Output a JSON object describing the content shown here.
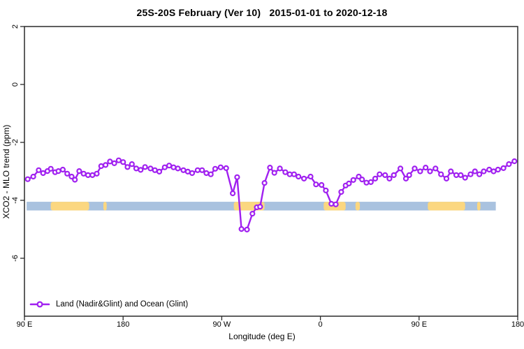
{
  "chart_data": {
    "type": "line",
    "title": "25S-20S February (Ver 10)   2015-01-01 to 2020-12-18",
    "xlabel": "Longitude (deg E)",
    "ylabel": "XCO2 - MLO trend (ppm)",
    "x_axis": {
      "wrapped_longitude": true,
      "range_deg_from_start": [
        0,
        450
      ],
      "tick_positions_deg": [
        0,
        90,
        180,
        270,
        360,
        450
      ],
      "tick_labels": [
        "90 E",
        "180",
        "90 W",
        "0",
        "90 E",
        "180"
      ]
    },
    "y_axis": {
      "range": [
        -8,
        2
      ],
      "tick_values": [
        2,
        0,
        -2,
        -4,
        -6
      ],
      "tick_labels": [
        "2",
        "0",
        "-2",
        "-4",
        "-6"
      ],
      "grid": false
    },
    "series": [
      {
        "name": "Land (Nadir&Glint) and Ocean (Glint)",
        "color": "#A020F0",
        "marker": "open-circle",
        "points": [
          [
            3,
            -3.27
          ],
          [
            8,
            -3.18
          ],
          [
            13,
            -2.96
          ],
          [
            17,
            -3.06
          ],
          [
            21,
            -2.99
          ],
          [
            24,
            -2.91
          ],
          [
            28,
            -3.03
          ],
          [
            31,
            -2.99
          ],
          [
            35,
            -2.94
          ],
          [
            39,
            -3.08
          ],
          [
            43,
            -3.18
          ],
          [
            46,
            -3.29
          ],
          [
            50,
            -2.99
          ],
          [
            54,
            -3.08
          ],
          [
            58,
            -3.13
          ],
          [
            62,
            -3.13
          ],
          [
            66,
            -3.08
          ],
          [
            70,
            -2.82
          ],
          [
            74,
            -2.78
          ],
          [
            78,
            -2.66
          ],
          [
            82,
            -2.72
          ],
          [
            86,
            -2.62
          ],
          [
            90,
            -2.68
          ],
          [
            94,
            -2.85
          ],
          [
            98,
            -2.75
          ],
          [
            102,
            -2.9
          ],
          [
            106,
            -2.95
          ],
          [
            110,
            -2.85
          ],
          [
            115,
            -2.9
          ],
          [
            119,
            -2.96
          ],
          [
            123,
            -3.01
          ],
          [
            128,
            -2.86
          ],
          [
            132,
            -2.8
          ],
          [
            136,
            -2.86
          ],
          [
            140,
            -2.9
          ],
          [
            145,
            -2.96
          ],
          [
            149,
            -3.01
          ],
          [
            153,
            -3.06
          ],
          [
            158,
            -2.96
          ],
          [
            162,
            -2.96
          ],
          [
            166,
            -3.06
          ],
          [
            170,
            -3.1
          ],
          [
            174,
            -2.91
          ],
          [
            179,
            -2.86
          ],
          [
            184,
            -2.89
          ],
          [
            190,
            -3.76
          ],
          [
            194,
            -3.2
          ],
          [
            198,
            -4.99
          ],
          [
            203,
            -5.01
          ],
          [
            208,
            -4.46
          ],
          [
            212,
            -4.24
          ],
          [
            215,
            -4.22
          ],
          [
            219,
            -3.4
          ],
          [
            224,
            -2.87
          ],
          [
            228,
            -3.05
          ],
          [
            233,
            -2.9
          ],
          [
            238,
            -3.03
          ],
          [
            242,
            -3.1
          ],
          [
            246,
            -3.1
          ],
          [
            250,
            -3.18
          ],
          [
            255,
            -3.25
          ],
          [
            261,
            -3.18
          ],
          [
            266,
            -3.45
          ],
          [
            271,
            -3.47
          ],
          [
            275,
            -3.66
          ],
          [
            280,
            -4.12
          ],
          [
            284,
            -4.14
          ],
          [
            289,
            -3.71
          ],
          [
            293,
            -3.49
          ],
          [
            296,
            -3.42
          ],
          [
            300,
            -3.3
          ],
          [
            305,
            -3.18
          ],
          [
            308,
            -3.28
          ],
          [
            312,
            -3.39
          ],
          [
            316,
            -3.37
          ],
          [
            320,
            -3.25
          ],
          [
            324,
            -3.1
          ],
          [
            329,
            -3.13
          ],
          [
            333,
            -3.25
          ],
          [
            337,
            -3.13
          ],
          [
            343,
            -2.9
          ],
          [
            348,
            -3.25
          ],
          [
            351,
            -3.13
          ],
          [
            356,
            -2.9
          ],
          [
            361,
            -3.0
          ],
          [
            366,
            -2.87
          ],
          [
            370,
            -3.0
          ],
          [
            375,
            -2.9
          ],
          [
            380,
            -3.1
          ],
          [
            385,
            -3.25
          ],
          [
            389,
            -3.0
          ],
          [
            394,
            -3.13
          ],
          [
            398,
            -3.13
          ],
          [
            402,
            -3.22
          ],
          [
            407,
            -3.1
          ],
          [
            411,
            -3.0
          ],
          [
            415,
            -3.1
          ],
          [
            419,
            -3.0
          ],
          [
            424,
            -2.94
          ],
          [
            428,
            -3.0
          ],
          [
            432,
            -2.94
          ],
          [
            437,
            -2.89
          ],
          [
            442,
            -2.75
          ],
          [
            447,
            -2.65
          ]
        ]
      }
    ],
    "coverage_band": {
      "y_top": -4.05,
      "y_bottom": -4.35,
      "ocean_color": "#A9C2DF",
      "land_color": "#FBD780",
      "ocean_extent_deg": [
        2,
        430
      ],
      "land_segments_deg": [
        [
          24,
          59
        ],
        [
          72,
          75
        ],
        [
          191,
          219
        ],
        [
          273,
          293
        ],
        [
          302,
          306
        ],
        [
          368,
          402
        ],
        [
          413,
          416
        ]
      ]
    },
    "legend": {
      "label": "Land (Nadir&Glint) and Ocean (Glint)",
      "position": "bottom-left"
    },
    "frame_color": "#2a2a2a"
  }
}
